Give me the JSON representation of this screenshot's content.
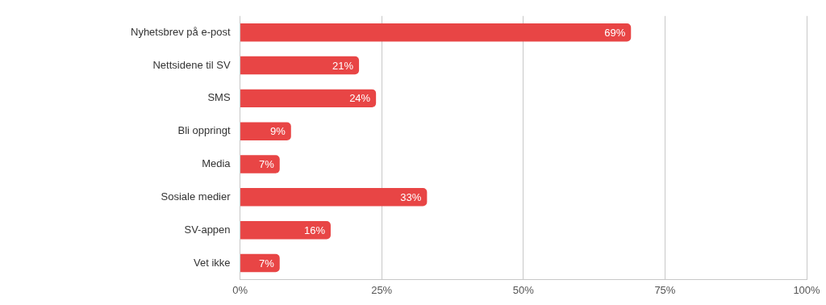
{
  "chart_data": {
    "type": "bar",
    "orientation": "horizontal",
    "categories": [
      "Nyhetsbrev på e-post",
      "Nettsidene til SV",
      "SMS",
      "Bli oppringt",
      "Media",
      "Sosiale medier",
      "SV-appen",
      "Vet ikke"
    ],
    "values": [
      69,
      21,
      24,
      9,
      7,
      33,
      16,
      7
    ],
    "value_labels": [
      "69%",
      "21%",
      "24%",
      "9%",
      "7%",
      "33%",
      "16%",
      "7%"
    ],
    "color": "#e84545",
    "xlim": [
      0,
      100
    ],
    "xticks": [
      {
        "value": 0,
        "label": "0%"
      },
      {
        "value": 25,
        "label": "25%"
      },
      {
        "value": 50,
        "label": "50%"
      },
      {
        "value": 75,
        "label": "75%"
      },
      {
        "value": 100,
        "label": "100%"
      }
    ],
    "grid": true,
    "data_labels": true
  }
}
